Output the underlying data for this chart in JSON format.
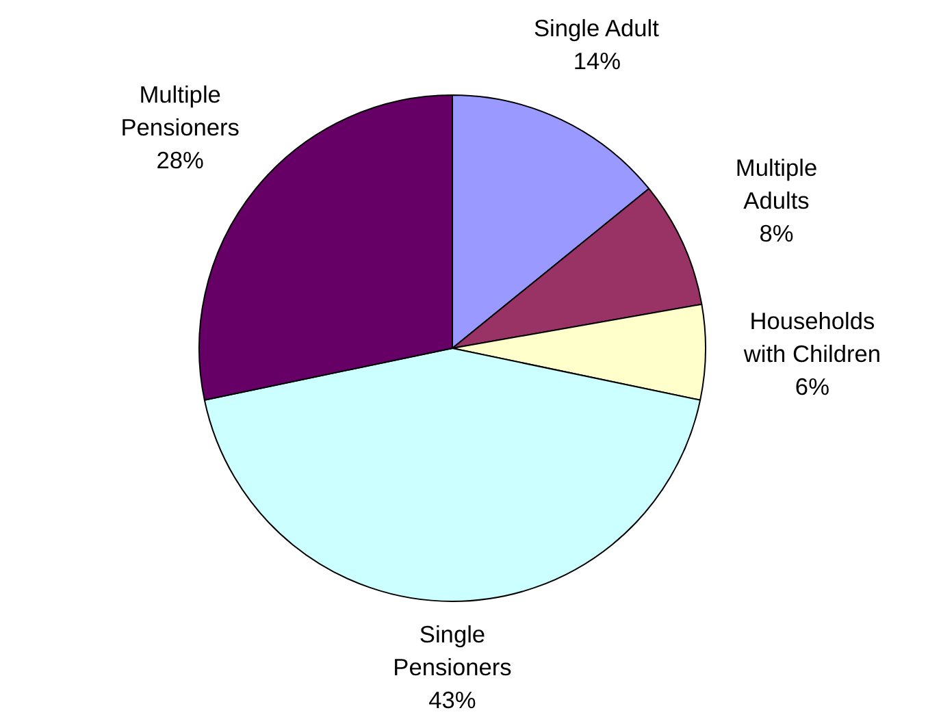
{
  "chart_data": {
    "type": "pie",
    "categories": [
      "Single Adult",
      "Multiple\nAdults",
      "Households\nwith Children",
      "Single\nPensioners",
      "Multiple\nPensioners"
    ],
    "values": [
      14,
      8,
      6,
      43,
      28
    ],
    "value_labels": [
      "14%",
      "8%",
      "6%",
      "43%",
      "28%"
    ],
    "colors": [
      "#9999ff",
      "#993366",
      "#ffffcc",
      "#ccffff",
      "#660066"
    ]
  }
}
